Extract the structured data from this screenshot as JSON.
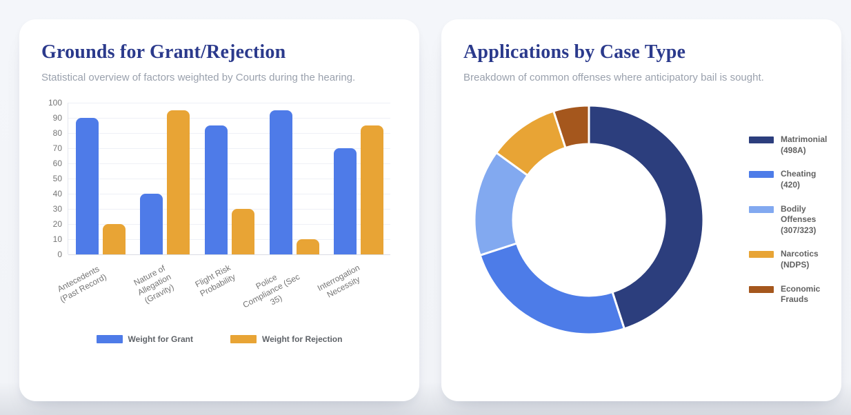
{
  "theme": {
    "title_color": "#2b3a8c",
    "subtitle_color": "#9aa1ad",
    "card_bg": "#ffffff",
    "page_bg": "#f4f6fa"
  },
  "cards": {
    "grounds": {
      "title": "Grounds for Grant/Rejection",
      "subtitle": "Statistical overview of factors weighted by Courts during the hearing."
    },
    "applications": {
      "title": "Applications by Case Type",
      "subtitle": "Breakdown of common offenses where anticipatory bail is sought."
    }
  },
  "chart_data": [
    {
      "type": "bar",
      "title": "Grounds for Grant/Rejection",
      "categories": [
        "Antecedents (Past Record)",
        "Nature of Allegation (Gravity)",
        "Flight Risk Probability",
        "Police Compliance (Sec 35)",
        "Interrogation Necessity"
      ],
      "category_lines": [
        [
          "Antecedents",
          "(Past Record)"
        ],
        [
          "Nature of",
          "Allegation",
          "(Gravity)"
        ],
        [
          "Flight Risk",
          "Probability"
        ],
        [
          "Police",
          "Compliance (Sec",
          "35)"
        ],
        [
          "Interrogation",
          "Necessity"
        ]
      ],
      "series": [
        {
          "name": "Weight for Grant",
          "color": "#4e7be8",
          "values": [
            90,
            40,
            85,
            95,
            70
          ]
        },
        {
          "name": "Weight for Rejection",
          "color": "#e8a435",
          "values": [
            20,
            95,
            30,
            10,
            85
          ]
        }
      ],
      "xlabel": "",
      "ylabel": "",
      "ylim": [
        0,
        100
      ],
      "ytick_step": 10,
      "grid": true,
      "legend_position": "bottom"
    },
    {
      "type": "pie",
      "subtype": "donut",
      "title": "Applications by Case Type",
      "labels": [
        "Matrimonial (498A)",
        "Cheating (420)",
        "Bodily Offenses (307/323)",
        "Narcotics (NDPS)",
        "Economic Frauds"
      ],
      "values": [
        45,
        25,
        15,
        10,
        5
      ],
      "colors": [
        "#2c3e7d",
        "#4d7ce8",
        "#82a9f0",
        "#e8a435",
        "#a5571d"
      ],
      "start_angle_deg": 0,
      "direction": "clockwise",
      "legend_position": "right"
    }
  ]
}
